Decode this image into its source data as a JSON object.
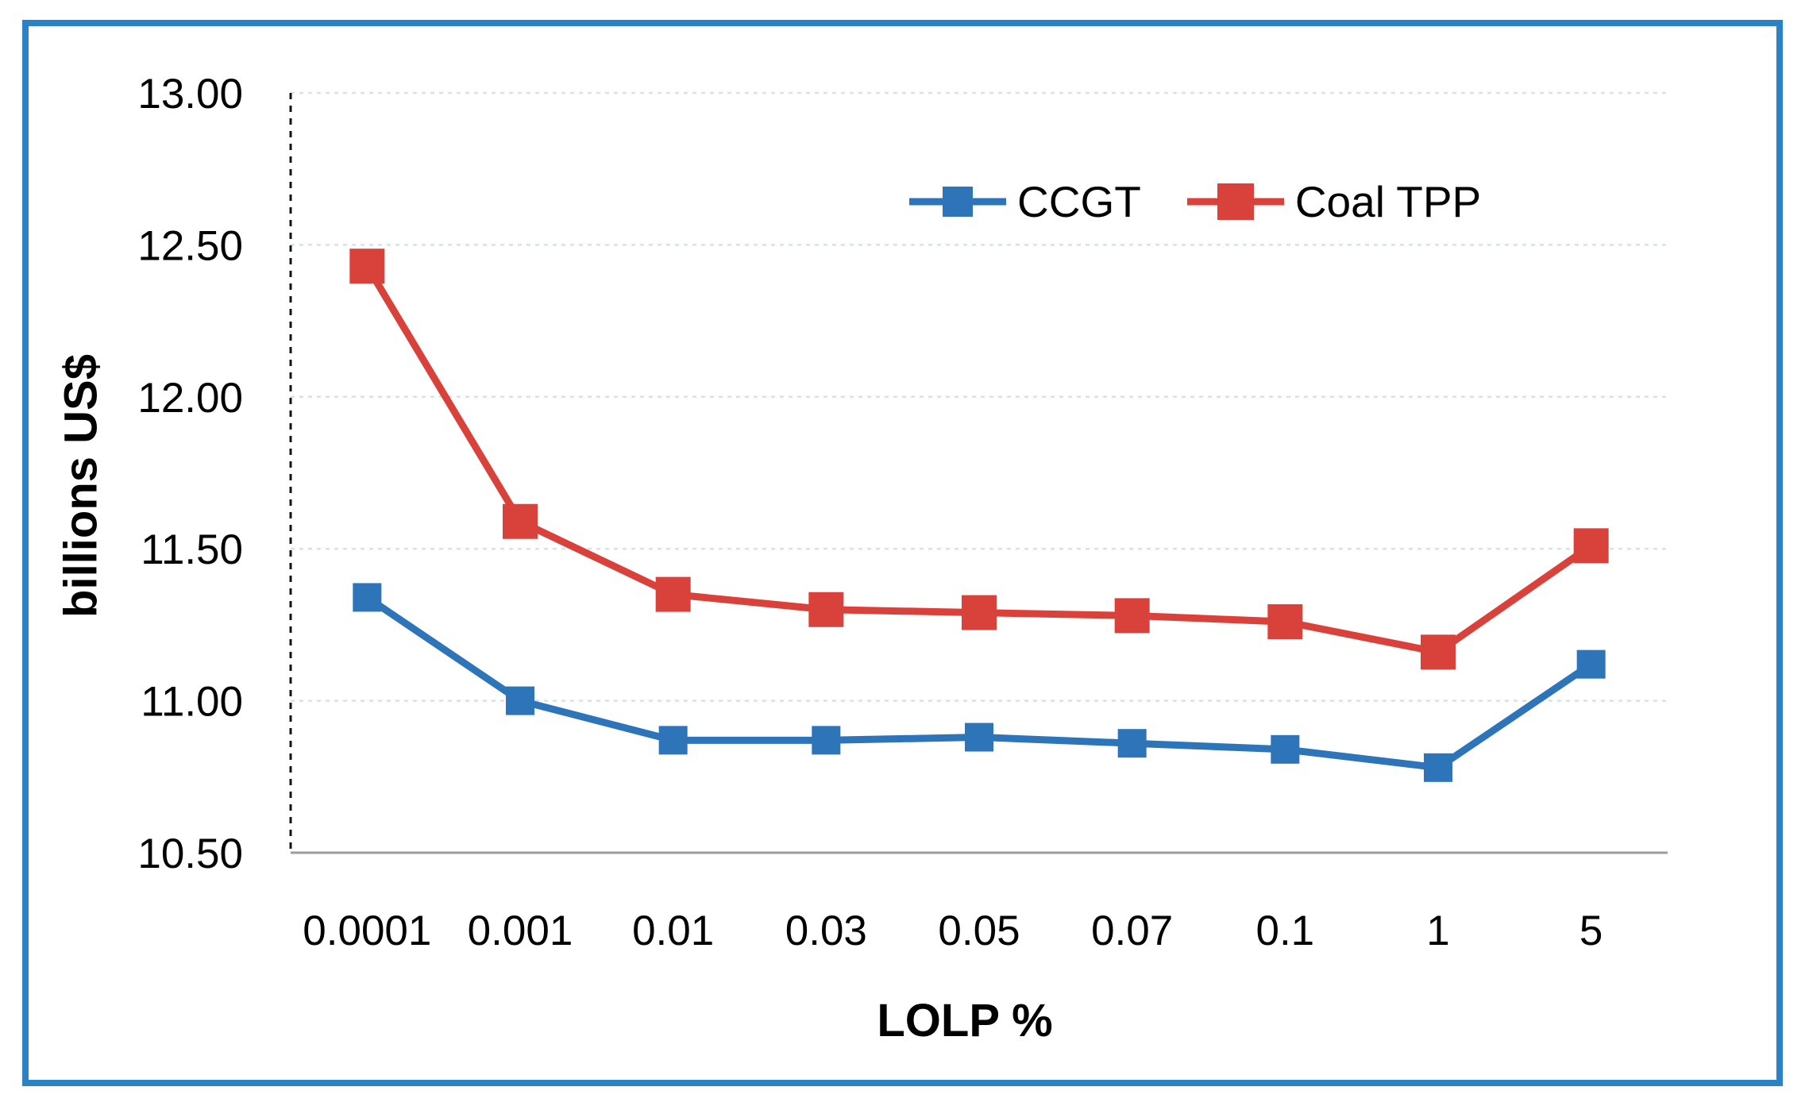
{
  "figure": {
    "background": "#FFFFFF",
    "border_color": "#2B82C4"
  },
  "chart_data": {
    "type": "line",
    "title": "",
    "xlabel": "LOLP %",
    "ylabel": "billions US$",
    "categories": [
      "0.0001",
      "0.001",
      "0.01",
      "0.03",
      "0.05",
      "0.07",
      "0.1",
      "1",
      "5"
    ],
    "series": [
      {
        "name": "CCGT",
        "color": "#2E74B9",
        "marker": "square",
        "values": [
          11.34,
          11.0,
          10.87,
          10.87,
          10.88,
          10.86,
          10.84,
          10.78,
          11.12
        ]
      },
      {
        "name": "Coal TPP",
        "color": "#D9423B",
        "marker": "square",
        "values": [
          12.43,
          11.59,
          11.35,
          11.3,
          11.29,
          11.28,
          11.26,
          11.16,
          11.51
        ]
      }
    ],
    "ylim": [
      10.5,
      13.0
    ],
    "ytick_step": 0.5,
    "ytick_labels": [
      "10.50",
      "11.00",
      "11.50",
      "12.00",
      "12.50",
      "13.00"
    ],
    "grid": "horizontal dashed gridlines on",
    "legend_position": "top-center inside plot",
    "axis_style": {
      "y_axis": "black dashed vertical line",
      "x_axis": "solid gray baseline",
      "gridline_color": "#D9E1EC"
    }
  }
}
